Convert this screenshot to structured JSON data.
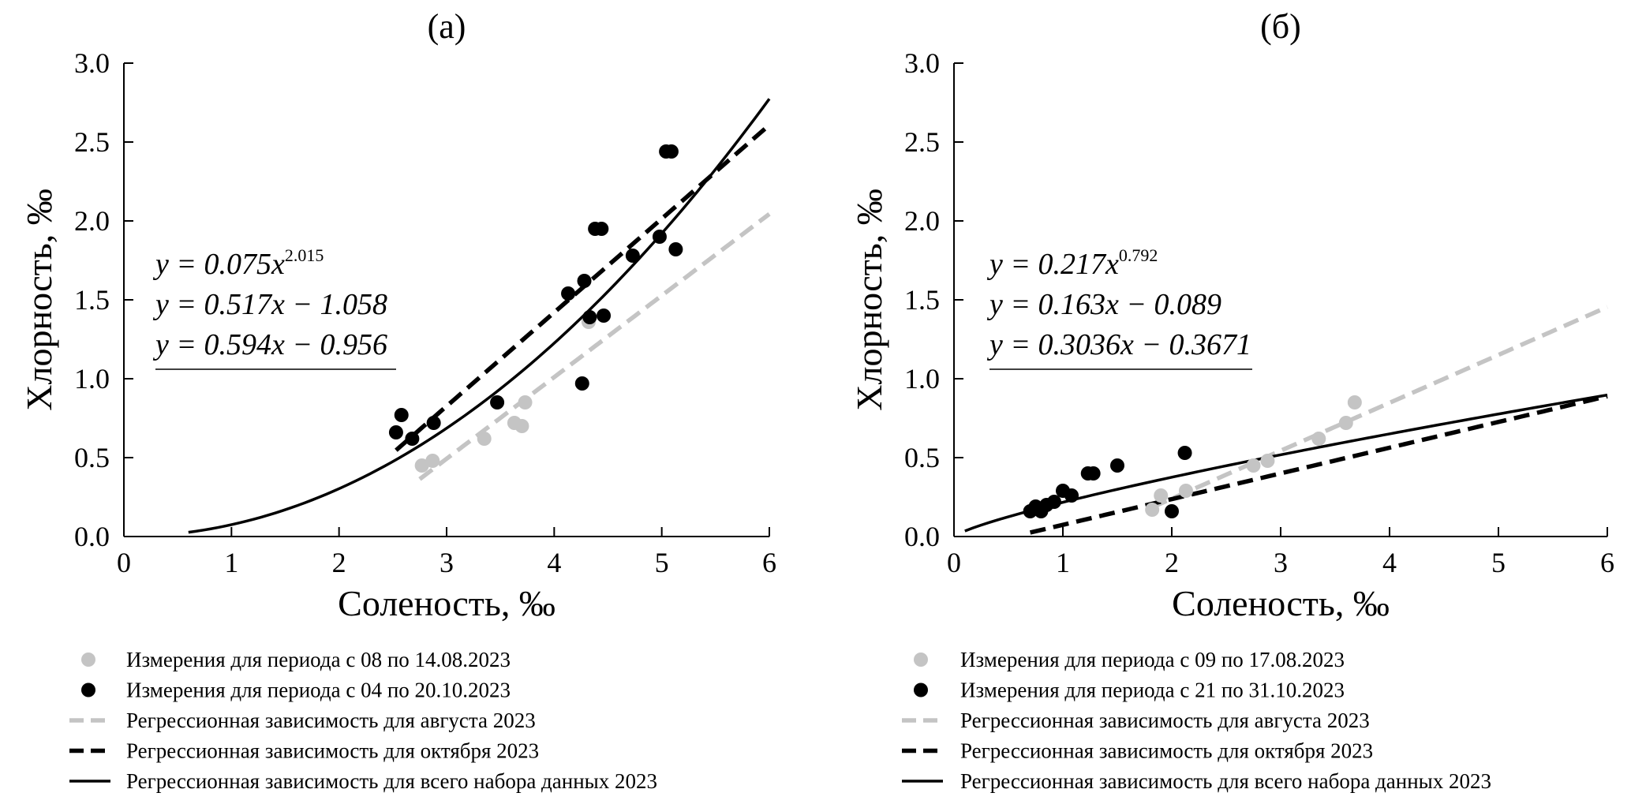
{
  "chart_data": [
    {
      "type": "scatter",
      "title": "(а)",
      "xlabel": "Соленость, ‰",
      "ylabel": "Хлорность, ‰",
      "xlim": [
        0,
        6
      ],
      "ylim": [
        0,
        3
      ],
      "xticks": [
        "0",
        "1",
        "2",
        "3",
        "4",
        "5",
        "6"
      ],
      "yticks": [
        "0.0",
        "0.5",
        "1.0",
        "1.5",
        "2.0",
        "2.5",
        "3.0"
      ],
      "grid": false,
      "equations": [
        {
          "prefix": "y = 0.075x",
          "sup": "2.015"
        },
        {
          "prefix": "y = 0.517x − 1.058",
          "sup": ""
        },
        {
          "prefix": "y = 0.594x − 0.956",
          "sup": ""
        }
      ],
      "series": [
        {
          "name": "Измерения для периода с 08 по 14.08.2023",
          "kind": "points",
          "color": "#c4c4c4",
          "points": [
            [
              2.77,
              0.45
            ],
            [
              2.87,
              0.48
            ],
            [
              3.35,
              0.62
            ],
            [
              3.63,
              0.72
            ],
            [
              3.7,
              0.7
            ],
            [
              3.73,
              0.85
            ],
            [
              4.32,
              1.36
            ]
          ]
        },
        {
          "name": "Измерения для периода с 04 по 20.10.2023",
          "kind": "points",
          "color": "#000000",
          "points": [
            [
              2.53,
              0.66
            ],
            [
              2.58,
              0.77
            ],
            [
              2.68,
              0.62
            ],
            [
              2.88,
              0.72
            ],
            [
              3.47,
              0.85
            ],
            [
              4.13,
              1.54
            ],
            [
              4.26,
              0.97
            ],
            [
              4.28,
              1.62
            ],
            [
              4.33,
              1.39
            ],
            [
              4.38,
              1.95
            ],
            [
              4.44,
              1.95
            ],
            [
              4.46,
              1.4
            ],
            [
              4.73,
              1.78
            ],
            [
              4.98,
              1.9
            ],
            [
              5.04,
              2.44
            ],
            [
              5.09,
              2.44
            ],
            [
              5.13,
              1.82
            ]
          ]
        },
        {
          "name": "Регрессионная зависимость для августа 2023",
          "kind": "line",
          "style": "dashed",
          "color": "#c4c4c4",
          "model": {
            "type": "linear",
            "a": 0.517,
            "b": -1.058
          },
          "x_range": [
            2.75,
            6.0
          ]
        },
        {
          "name": "Регрессионная зависимость для октября 2023",
          "kind": "line",
          "style": "dashed",
          "color": "#000000",
          "model": {
            "type": "linear",
            "a": 0.594,
            "b": -0.956
          },
          "x_range": [
            2.53,
            6.0
          ]
        },
        {
          "name": "Регрессионная зависимость для всего набора данных 2023",
          "kind": "line",
          "style": "solid",
          "color": "#000000",
          "model": {
            "type": "power",
            "a": 0.075,
            "b": 2.015
          },
          "x_range": [
            0.6,
            6.0
          ]
        }
      ]
    },
    {
      "type": "scatter",
      "title": "(б)",
      "xlabel": "Соленость, ‰",
      "ylabel": "Хлорность, ‰",
      "xlim": [
        0,
        6
      ],
      "ylim": [
        0,
        3
      ],
      "xticks": [
        "0",
        "1",
        "2",
        "3",
        "4",
        "5",
        "6"
      ],
      "yticks": [
        "0.0",
        "0.5",
        "1.0",
        "1.5",
        "2.0",
        "2.5",
        "3.0"
      ],
      "grid": false,
      "equations": [
        {
          "prefix": "y = 0.217x",
          "sup": "0.792"
        },
        {
          "prefix": "y = 0.163x − 0.089",
          "sup": ""
        },
        {
          "prefix": "y = 0.3036x − 0.3671",
          "sup": ""
        }
      ],
      "series": [
        {
          "name": "Измерения для периода с 09 по 17.08.2023",
          "kind": "points",
          "color": "#c4c4c4",
          "points": [
            [
              1.82,
              0.17
            ],
            [
              1.9,
              0.26
            ],
            [
              2.13,
              0.29
            ],
            [
              2.75,
              0.45
            ],
            [
              2.88,
              0.48
            ],
            [
              3.35,
              0.62
            ],
            [
              3.6,
              0.72
            ],
            [
              3.68,
              0.85
            ]
          ]
        },
        {
          "name": "Измерения для периода с 21 по 31.10.2023",
          "kind": "points",
          "color": "#000000",
          "points": [
            [
              0.7,
              0.16
            ],
            [
              0.75,
              0.19
            ],
            [
              0.8,
              0.16
            ],
            [
              0.85,
              0.2
            ],
            [
              0.92,
              0.22
            ],
            [
              1.0,
              0.29
            ],
            [
              1.08,
              0.26
            ],
            [
              1.23,
              0.4
            ],
            [
              1.28,
              0.4
            ],
            [
              1.5,
              0.45
            ],
            [
              2.0,
              0.16
            ],
            [
              2.12,
              0.53
            ]
          ]
        },
        {
          "name": "Регрессионная зависимость для августа 2023",
          "kind": "line",
          "style": "dashed",
          "color": "#c4c4c4",
          "model": {
            "type": "linear",
            "a": 0.3036,
            "b": -0.3671
          },
          "x_range": [
            1.82,
            6.0
          ]
        },
        {
          "name": "Регрессионная зависимость для октября 2023",
          "kind": "line",
          "style": "dashed",
          "color": "#000000",
          "model": {
            "type": "linear",
            "a": 0.163,
            "b": -0.089
          },
          "x_range": [
            0.7,
            6.0
          ]
        },
        {
          "name": "Регрессионная зависимость для всего набора данных 2023",
          "kind": "line",
          "style": "solid",
          "color": "#000000",
          "model": {
            "type": "power",
            "a": 0.217,
            "b": 0.792
          },
          "x_range": [
            0.1,
            6.0
          ]
        }
      ]
    }
  ]
}
